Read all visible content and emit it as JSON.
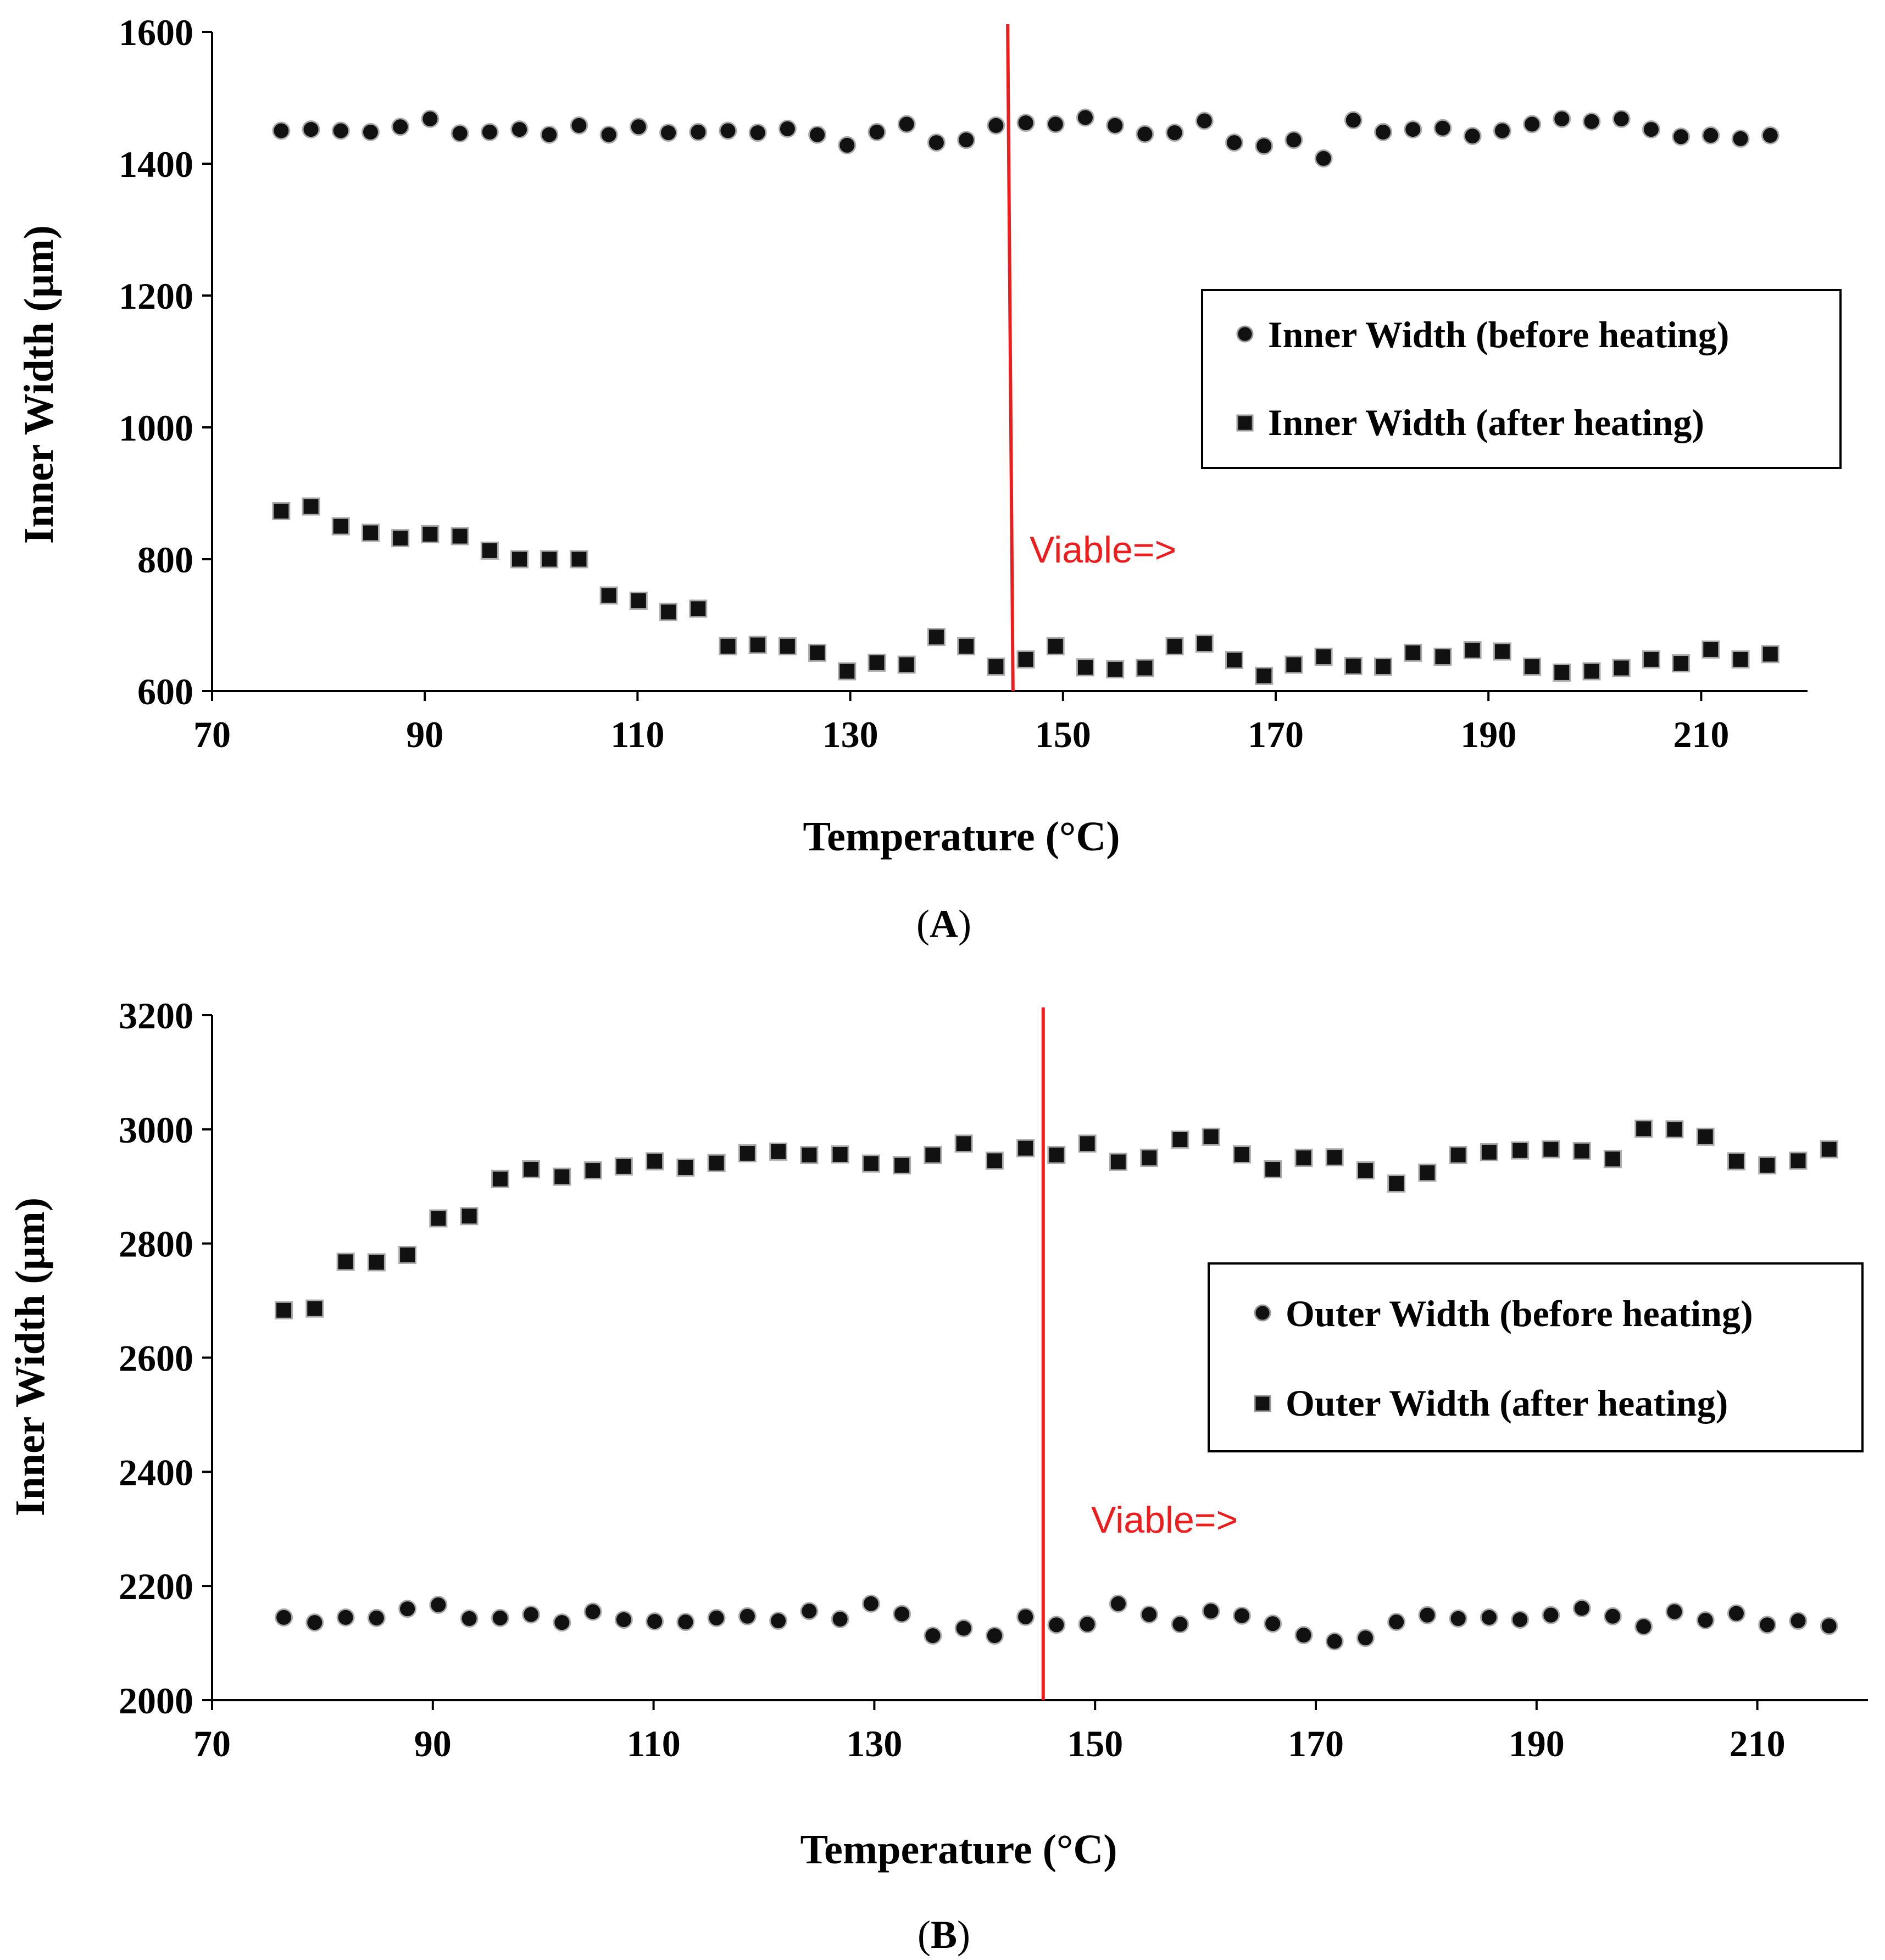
{
  "colors": {
    "marker": "#111111",
    "marker_edge": "#aaaaaa",
    "viable_line": "#ee1c1c",
    "axis": "#000000",
    "text": "#000000"
  },
  "chart_data": [
    {
      "type": "scatter",
      "panel_label": "(A)",
      "panel_letter": "A",
      "xlabel": "Temperature (°C)",
      "ylabel": "Inner Width (µm)",
      "xlim": [
        70,
        220
      ],
      "ylim": [
        600,
        1600
      ],
      "xticks": [
        70,
        90,
        110,
        130,
        150,
        170,
        190,
        210
      ],
      "yticks": [
        600,
        800,
        1000,
        1200,
        1400,
        1600
      ],
      "viable": {
        "label": "Viable=>",
        "x_bottom": 145.3,
        "x_top": 144.8
      },
      "legend_position": "right-middle",
      "x": [
        76.5,
        79.3,
        82.1,
        84.9,
        87.7,
        90.5,
        93.3,
        96.1,
        98.9,
        101.7,
        104.5,
        107.3,
        110.1,
        112.9,
        115.7,
        118.5,
        121.3,
        124.1,
        126.9,
        129.7,
        132.5,
        135.3,
        138.1,
        140.9,
        143.7,
        146.5,
        149.3,
        152.1,
        154.9,
        157.7,
        160.5,
        163.3,
        166.1,
        168.9,
        171.7,
        174.5,
        177.3,
        180.1,
        182.9,
        185.7,
        188.5,
        191.3,
        194.1,
        196.9,
        199.7,
        202.5,
        205.3,
        208.1,
        210.9,
        213.7,
        216.5
      ],
      "series": [
        {
          "name": "Inner Width (before heating)",
          "marker": "circle",
          "values": [
            1450,
            1452,
            1450,
            1448,
            1456,
            1468,
            1446,
            1448,
            1452,
            1444,
            1458,
            1444,
            1456,
            1447,
            1448,
            1450,
            1447,
            1453,
            1444,
            1428,
            1448,
            1460,
            1432,
            1436,
            1458,
            1462,
            1460,
            1470,
            1458,
            1445,
            1447,
            1465,
            1432,
            1427,
            1436,
            1408,
            1466,
            1448,
            1452,
            1454,
            1442,
            1450,
            1460,
            1468,
            1464,
            1468,
            1452,
            1441,
            1443,
            1438,
            1443
          ]
        },
        {
          "name": "Inner Width (after heating)",
          "marker": "square",
          "values": [
            873,
            880,
            850,
            840,
            832,
            838,
            835,
            813,
            800,
            800,
            800,
            745,
            737,
            720,
            725,
            668,
            670,
            668,
            658,
            630,
            643,
            640,
            682,
            668,
            637,
            648,
            668,
            636,
            633,
            635,
            668,
            672,
            647,
            623,
            640,
            652,
            638,
            637,
            658,
            652,
            662,
            660,
            637,
            628,
            630,
            635,
            648,
            642,
            663,
            648,
            656
          ]
        }
      ]
    },
    {
      "type": "scatter",
      "panel_label": "(B)",
      "panel_letter": "B",
      "xlabel": "Temperature (°C)",
      "ylabel": "Inner Width (µm)",
      "xlim": [
        70,
        220
      ],
      "ylim": [
        2000,
        3200
      ],
      "xticks": [
        70,
        90,
        110,
        130,
        150,
        170,
        190,
        210
      ],
      "yticks": [
        2000,
        2200,
        2400,
        2600,
        2800,
        3000,
        3200
      ],
      "viable": {
        "label": "Viable=>",
        "x_bottom": 145.3,
        "x_top": 145.3
      },
      "legend_position": "right-middle",
      "x": [
        76.5,
        79.3,
        82.1,
        84.9,
        87.7,
        90.5,
        93.3,
        96.1,
        98.9,
        101.7,
        104.5,
        107.3,
        110.1,
        112.9,
        115.7,
        118.5,
        121.3,
        124.1,
        126.9,
        129.7,
        132.5,
        135.3,
        138.1,
        140.9,
        143.7,
        146.5,
        149.3,
        152.1,
        154.9,
        157.7,
        160.5,
        163.3,
        166.1,
        168.9,
        171.7,
        174.5,
        177.3,
        180.1,
        182.9,
        185.7,
        188.5,
        191.3,
        194.1,
        196.9,
        199.7,
        202.5,
        205.3,
        208.1,
        210.9,
        213.7,
        216.5
      ],
      "series": [
        {
          "name": "Outer Width (before heating)",
          "marker": "circle",
          "values": [
            2145,
            2136,
            2145,
            2144,
            2160,
            2167,
            2143,
            2144,
            2150,
            2136,
            2155,
            2141,
            2138,
            2137,
            2144,
            2147,
            2139,
            2156,
            2142,
            2169,
            2151,
            2113,
            2126,
            2113,
            2146,
            2132,
            2133,
            2169,
            2150,
            2133,
            2156,
            2148,
            2134,
            2114,
            2103,
            2109,
            2137,
            2149,
            2143,
            2145,
            2141,
            2149,
            2161,
            2147,
            2129,
            2155,
            2140,
            2152,
            2132,
            2139,
            2130
          ]
        },
        {
          "name": "Outer Width (after heating)",
          "marker": "square",
          "values": [
            2683,
            2686,
            2768,
            2767,
            2780,
            2844,
            2848,
            2913,
            2930,
            2917,
            2928,
            2935,
            2944,
            2933,
            2941,
            2958,
            2961,
            2955,
            2956,
            2940,
            2937,
            2955,
            2975,
            2945,
            2967,
            2955,
            2975,
            2943,
            2950,
            2982,
            2987,
            2956,
            2930,
            2950,
            2951,
            2928,
            2905,
            2924,
            2955,
            2960,
            2963,
            2965,
            2962,
            2948,
            3001,
            3000,
            2987,
            2944,
            2937,
            2945,
            2965
          ]
        }
      ]
    }
  ]
}
